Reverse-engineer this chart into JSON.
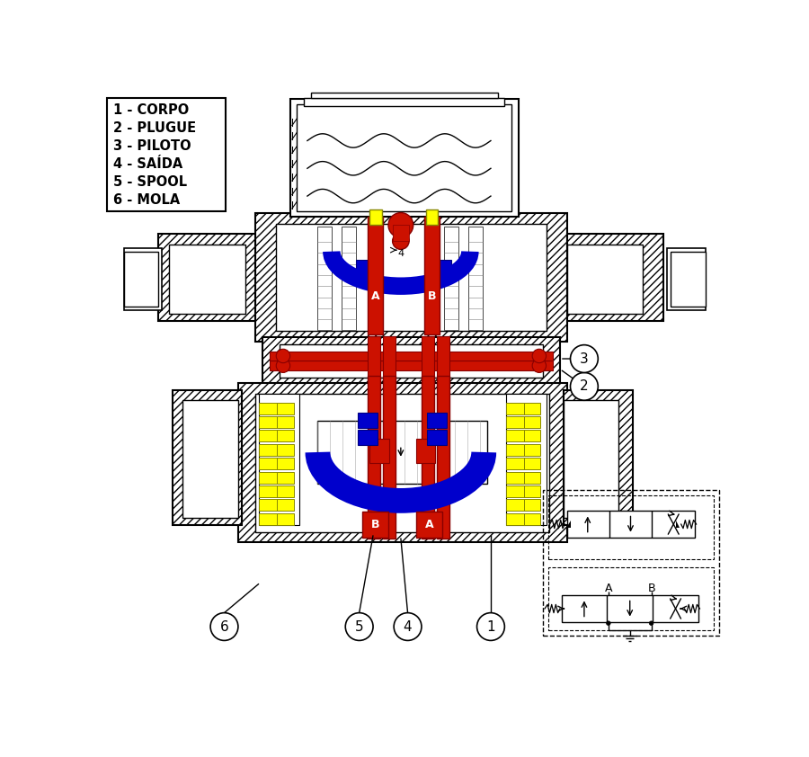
{
  "legend_items": [
    "1 - CORPO",
    "2 - PLUGUE",
    "3 - PILOTO",
    "4 - SAÍDA",
    "5 - SPOOL",
    "6 - MOLA"
  ],
  "bg_color": "#ffffff",
  "red": "#cc1100",
  "blue": "#0000cc",
  "yellow": "#ffff00",
  "lc": "#000000",
  "callouts": [
    [
      175,
      68,
      "6"
    ],
    [
      370,
      68,
      "5"
    ],
    [
      440,
      68,
      "4"
    ],
    [
      560,
      68,
      "1"
    ],
    [
      695,
      415,
      "2"
    ],
    [
      695,
      455,
      "3"
    ]
  ]
}
